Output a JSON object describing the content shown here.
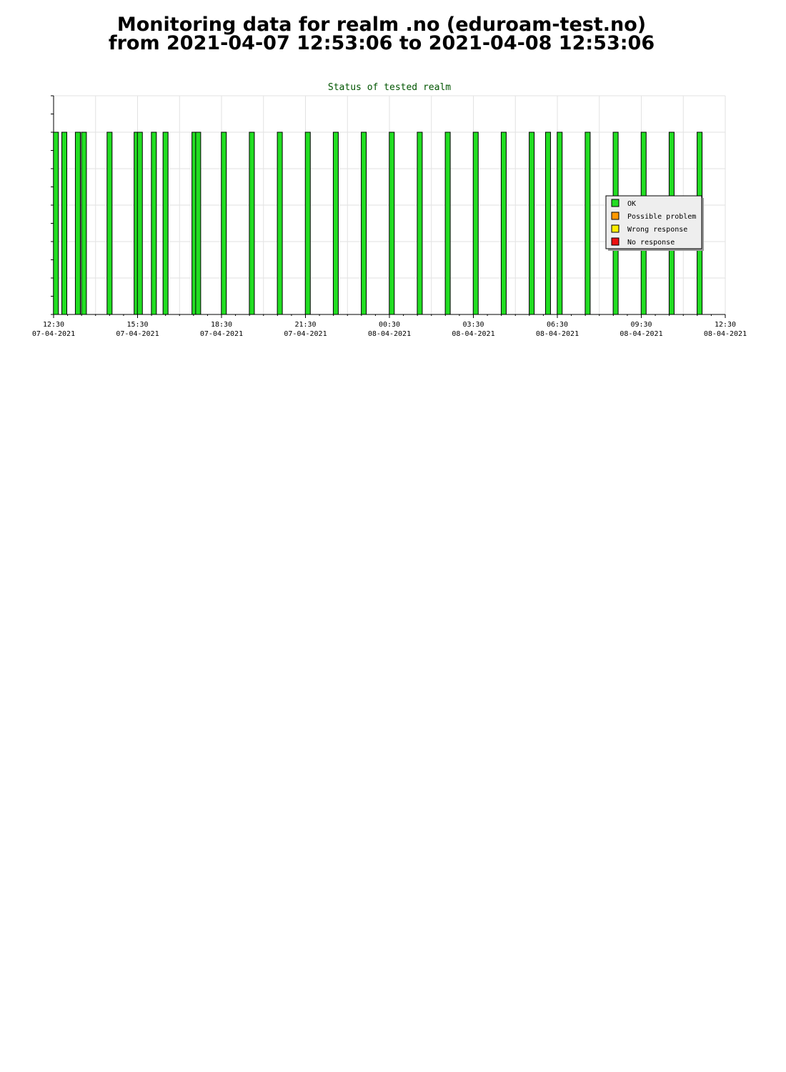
{
  "page": {
    "title_line1": "Monitoring data for realm .no  (eduroam-test.no)",
    "title_line2": "from 2021-04-07  12:53:06 to 2021-04-08  12:53:06"
  },
  "chart_data": {
    "type": "bar",
    "title": "Status of tested realm",
    "xlabel": "",
    "ylabel": "",
    "x_start": "2021-04-07 12:30",
    "x_end": "2021-04-08 12:30",
    "xlim_hours": [
      0,
      24
    ],
    "ylim": [
      0,
      6
    ],
    "grid": true,
    "legend_position": "right-middle",
    "x_ticks": [
      {
        "time": "12:30",
        "date": "07-04-2021"
      },
      {
        "time": "15:30",
        "date": "07-04-2021"
      },
      {
        "time": "18:30",
        "date": "07-04-2021"
      },
      {
        "time": "21:30",
        "date": "07-04-2021"
      },
      {
        "time": "00:30",
        "date": "08-04-2021"
      },
      {
        "time": "03:30",
        "date": "08-04-2021"
      },
      {
        "time": "06:30",
        "date": "08-04-2021"
      },
      {
        "time": "09:30",
        "date": "08-04-2021"
      },
      {
        "time": "12:30",
        "date": "08-04-2021"
      }
    ],
    "legend": [
      {
        "label": "OK",
        "color": "#22dd22"
      },
      {
        "label": "Possible problem",
        "color": "#ff9900"
      },
      {
        "label": "Wrong response",
        "color": "#ffee00"
      },
      {
        "label": "No response",
        "color": "#ee1111"
      }
    ],
    "series": [
      {
        "status": "OK",
        "color": "#22dd22",
        "times": [
          "12:53",
          "13:22",
          "13:35",
          "14:30",
          "15:28",
          "15:35",
          "16:05",
          "16:30",
          "17:32",
          "17:40",
          "18:35",
          "19:35",
          "20:35",
          "21:35",
          "22:35",
          "23:35",
          "00:35",
          "01:35",
          "02:35",
          "03:35",
          "04:35",
          "05:35",
          "06:10",
          "06:35",
          "07:35",
          "08:35",
          "09:35",
          "10:35",
          "11:35",
          "12:35"
        ],
        "values": [
          5,
          5,
          5,
          5,
          5,
          5,
          5,
          5,
          5,
          5,
          5,
          5,
          5,
          5,
          5,
          5,
          5,
          5,
          5,
          5,
          5,
          5,
          5,
          5,
          5,
          5,
          5,
          5,
          5,
          5
        ]
      }
    ]
  }
}
